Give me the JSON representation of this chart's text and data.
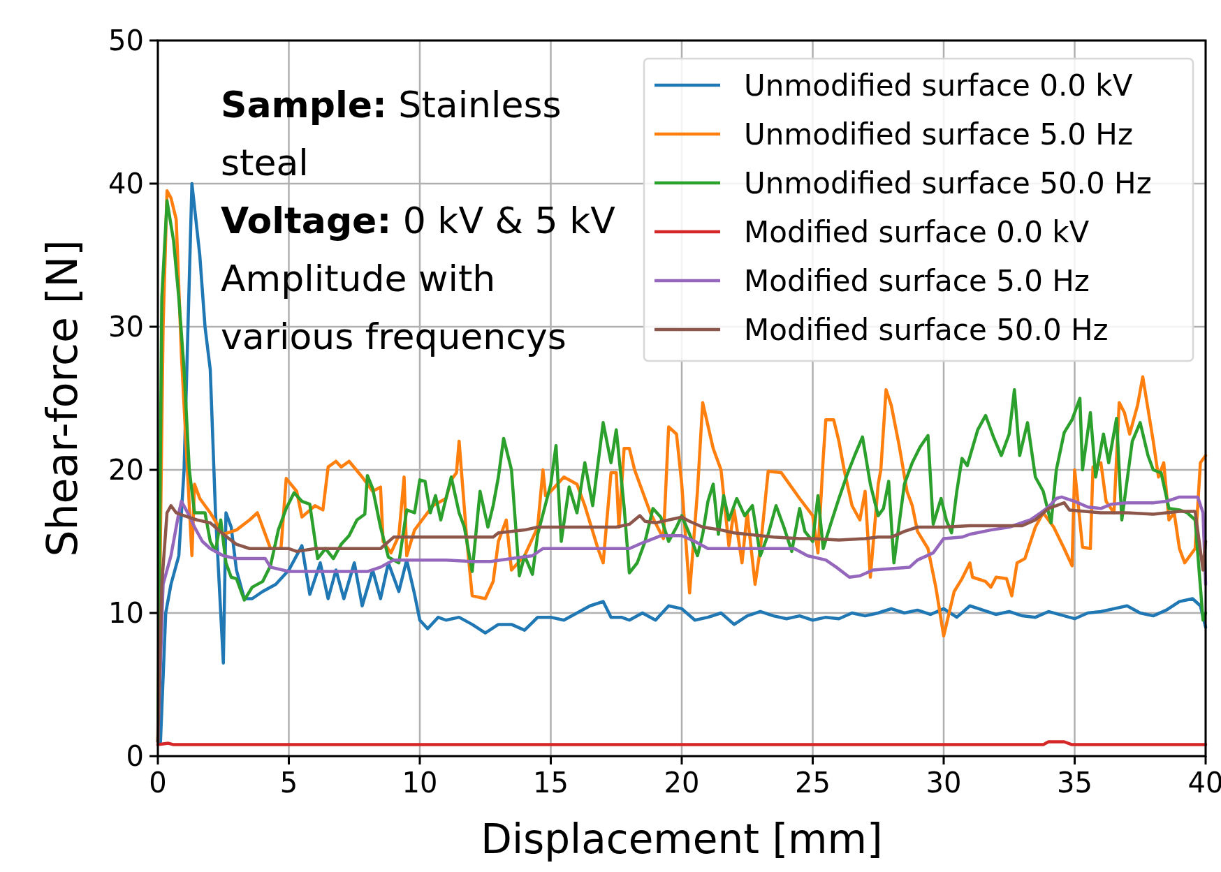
{
  "chart_data": {
    "type": "line",
    "xlabel": "Displacement [mm]",
    "ylabel": "Shear-force [N]",
    "xlim": [
      0,
      40
    ],
    "ylim": [
      0,
      50
    ],
    "xticks": [
      0,
      5,
      10,
      15,
      20,
      25,
      30,
      35,
      40
    ],
    "yticks": [
      0,
      10,
      20,
      30,
      40,
      50
    ],
    "grid": true,
    "legend": "top right",
    "line_style": "solid",
    "marker": "none",
    "annotations": [
      "Sample: Stainless\nsteal",
      "Voltage: 0 kV & 5 kV",
      "Amplitude with\nvarious frequencys"
    ],
    "series": [
      {
        "name": "Unmodified surface 0.0 kV",
        "color": "#1f77b4",
        "x": [
          0,
          0.1,
          0.3,
          0.5,
          0.8,
          1.0,
          1.3,
          1.6,
          1.8,
          2.0,
          2.2,
          2.5,
          2.6,
          2.8,
          3.0,
          3.3,
          3.6,
          4.0,
          4.5,
          5.0,
          5.5,
          5.8,
          6.2,
          6.5,
          6.8,
          7.1,
          7.5,
          7.8,
          8.2,
          8.5,
          8.8,
          9.2,
          9.5,
          9.8,
          10.0,
          10.3,
          10.7,
          11.0,
          11.5,
          12.0,
          12.5,
          13.0,
          13.5,
          14.0,
          14.5,
          15.0,
          15.5,
          16.0,
          16.5,
          17.0,
          17.3,
          17.7,
          18.0,
          18.5,
          19.0,
          19.5,
          20.0,
          20.5,
          21.0,
          21.5,
          22.0,
          22.5,
          23.0,
          23.5,
          24.0,
          24.5,
          25.0,
          25.5,
          26.0,
          26.5,
          27.0,
          27.5,
          28.0,
          28.5,
          29.0,
          29.5,
          30.0,
          30.5,
          31.0,
          31.5,
          32.0,
          32.5,
          33.0,
          33.5,
          34.0,
          35.0,
          35.5,
          36.0,
          36.5,
          37.0,
          37.5,
          38.0,
          38.5,
          39.0,
          39.5,
          39.8,
          40
        ],
        "values": [
          1,
          1,
          10,
          12,
          14,
          20,
          40,
          35,
          30,
          27,
          17,
          6.5,
          17,
          16,
          13,
          11,
          11,
          11.5,
          12,
          13,
          14.7,
          11.3,
          13.5,
          11,
          13,
          11,
          13.5,
          10.5,
          13,
          11,
          13.5,
          11.5,
          13.7,
          11.3,
          9.5,
          8.9,
          9.7,
          9.5,
          9.7,
          9.2,
          8.6,
          9.2,
          9.2,
          8.8,
          9.7,
          9.7,
          9.5,
          10,
          10.5,
          10.8,
          9.7,
          9.7,
          9.5,
          10,
          9.5,
          10.5,
          10.3,
          9.5,
          9.7,
          10,
          9.2,
          9.8,
          10.1,
          9.8,
          9.6,
          9.8,
          9.5,
          9.7,
          9.6,
          10,
          9.8,
          10,
          10.3,
          10,
          10.2,
          9.9,
          10.3,
          9.7,
          10.5,
          10.2,
          9.9,
          10.1,
          9.8,
          9.7,
          10.1,
          9.6,
          10,
          10.1,
          10.3,
          10.5,
          10,
          9.8,
          10.2,
          10.8,
          11,
          10.5,
          9
        ]
      },
      {
        "name": "Unmodified surface 5.0 Hz",
        "color": "#ff7f0e",
        "x": [
          0,
          0.2,
          0.35,
          0.5,
          0.7,
          0.9,
          1.1,
          1.3,
          1.4,
          1.6,
          2.0,
          2.5,
          3.0,
          3.5,
          3.8,
          4.0,
          4.3,
          4.7,
          4.9,
          5.3,
          5.5,
          6.0,
          6.3,
          6.5,
          6.8,
          7.0,
          7.3,
          7.8,
          8.2,
          8.5,
          8.6,
          8.9,
          9.2,
          9.4,
          9.5,
          9.8,
          10.5,
          11.0,
          11.2,
          11.4,
          11.5,
          11.8,
          12.0,
          12.5,
          12.8,
          13.0,
          13.3,
          13.5,
          14.0,
          14.5,
          14.7,
          14.8,
          15.0,
          15.5,
          16.0,
          16.3,
          16.8,
          17.0,
          17.3,
          17.5,
          17.6,
          17.8,
          18.0,
          18.2,
          18.4,
          18.8,
          19.3,
          19.5,
          19.8,
          20.0,
          20.3,
          20.6,
          20.8,
          21.2,
          21.5,
          21.8,
          22.0,
          22.3,
          22.5,
          22.8,
          23.0,
          23.3,
          23.8,
          24.5,
          25.0,
          25.2,
          25.4,
          25.5,
          25.8,
          26.0,
          26.2,
          26.5,
          26.8,
          27.0,
          27.2,
          27.5,
          27.6,
          27.8,
          28.0,
          28.3,
          28.6,
          28.8,
          29.0,
          29.4,
          29.7,
          30.0,
          30.4,
          30.7,
          31.0,
          31.1,
          31.6,
          31.8,
          32.0,
          32.4,
          32.6,
          32.8,
          33.1,
          33.5,
          33.8,
          34.2,
          34.6,
          34.9,
          35.0,
          35.3,
          35.6,
          35.7,
          36.0,
          36.2,
          36.5,
          36.7,
          36.9,
          37.1,
          37.4,
          37.6,
          38.0,
          38.2,
          38.4,
          38.6,
          38.8,
          39.0,
          39.2,
          39.6,
          39.8,
          40.0
        ],
        "values": [
          1,
          30,
          39.5,
          39,
          37.5,
          28,
          21,
          14,
          19,
          18,
          17,
          15.5,
          15.8,
          16.5,
          17,
          16,
          14.5,
          14.5,
          19.4,
          18.5,
          16.7,
          17.5,
          17.2,
          20.2,
          20.6,
          20.2,
          20.6,
          19.5,
          18.5,
          18.8,
          15,
          14.2,
          15.4,
          19.5,
          14,
          15.8,
          17.5,
          18,
          19.3,
          19.8,
          22,
          15,
          11.2,
          11,
          12.2,
          15,
          16.5,
          13,
          14,
          16,
          20,
          18.2,
          18.5,
          19.5,
          19,
          17.5,
          14.5,
          13.5,
          19.8,
          19.8,
          16,
          21.5,
          21.5,
          20,
          19,
          17,
          15.2,
          23,
          22.5,
          19,
          11.4,
          18.5,
          24.7,
          21.5,
          20,
          14.7,
          17.2,
          13.5,
          17,
          12,
          14.5,
          19.9,
          19.8,
          18,
          16.8,
          14.2,
          20.8,
          23.5,
          23.5,
          22,
          20,
          17.5,
          16.5,
          18.5,
          12.5,
          19,
          20,
          25.6,
          24.5,
          21.7,
          18.5,
          17.5,
          15.7,
          14.5,
          11.8,
          8.4,
          11.5,
          12.4,
          13.5,
          12.5,
          12.2,
          11.8,
          12.5,
          12.4,
          11.2,
          13.5,
          13.8,
          16,
          17,
          16,
          14.5,
          13.3,
          20,
          14.6,
          14.5,
          20.2,
          20.5,
          17.8,
          17,
          24.7,
          24,
          22.5,
          24.5,
          26.5,
          22,
          19.5,
          20.5,
          16.5,
          17,
          14.5,
          13.5,
          14.5,
          20.5,
          21
        ]
      },
      {
        "name": "Unmodified surface 50.0 Hz",
        "color": "#2ca02c",
        "x": [
          0,
          0.15,
          0.35,
          0.6,
          0.8,
          1.0,
          1.2,
          1.4,
          1.6,
          1.8,
          2.0,
          2.2,
          2.4,
          2.6,
          2.8,
          3.0,
          3.3,
          3.6,
          4.0,
          4.3,
          4.6,
          4.9,
          5.2,
          5.5,
          5.8,
          6.1,
          6.4,
          6.7,
          7.0,
          7.3,
          7.6,
          7.9,
          8.0,
          8.2,
          8.5,
          8.8,
          9.2,
          9.5,
          9.8,
          10.0,
          10.2,
          10.4,
          10.6,
          10.8,
          11.2,
          11.5,
          11.7,
          12.0,
          12.3,
          12.6,
          12.8,
          13.0,
          13.2,
          13.5,
          13.8,
          14.0,
          14.3,
          14.5,
          15.0,
          15.2,
          15.4,
          15.7,
          16.0,
          16.3,
          16.6,
          17.0,
          17.3,
          17.5,
          17.8,
          18.0,
          18.3,
          18.6,
          18.9,
          19.2,
          19.5,
          19.8,
          20.0,
          20.3,
          20.6,
          20.8,
          21.0,
          21.2,
          21.4,
          21.6,
          21.8,
          22.1,
          22.4,
          22.7,
          23.0,
          23.3,
          23.6,
          23.9,
          24.2,
          24.5,
          24.7,
          25.0,
          25.2,
          25.4,
          25.7,
          26.0,
          26.3,
          26.6,
          26.9,
          27.2,
          27.5,
          27.7,
          27.9,
          28.1,
          28.5,
          28.8,
          29.1,
          29.4,
          29.6,
          29.9,
          30.1,
          30.3,
          30.5,
          30.7,
          30.9,
          31.3,
          31.6,
          31.9,
          32.2,
          32.5,
          32.7,
          32.9,
          33.2,
          33.5,
          33.8,
          34.1,
          34.3,
          34.6,
          34.9,
          35.2,
          35.3,
          35.6,
          35.8,
          36.1,
          36.3,
          36.6,
          36.8,
          37.2,
          37.5,
          37.8,
          38.0,
          38.3,
          38.6,
          39.0,
          39.3,
          39.6,
          39.9,
          40.0
        ],
        "values": [
          1,
          32,
          38.8,
          36,
          32,
          27,
          20,
          17,
          17,
          17,
          15,
          14.3,
          16.5,
          13.5,
          12.5,
          12.4,
          10.9,
          11.8,
          12.2,
          13.3,
          15.8,
          17.3,
          18.4,
          17.8,
          17.6,
          13.8,
          14.5,
          13.8,
          14.8,
          15.4,
          16.5,
          16.9,
          19.6,
          18.7,
          16,
          13.9,
          13.5,
          17.2,
          17,
          19.3,
          19.2,
          17,
          18.2,
          16.5,
          19.5,
          17,
          16,
          12.9,
          18.5,
          16,
          17.5,
          19.5,
          22.2,
          20,
          12.6,
          14,
          12.7,
          15.5,
          19,
          21.7,
          15,
          18.8,
          17,
          20.5,
          17.5,
          23.3,
          20.5,
          22.8,
          17.4,
          12.8,
          13.5,
          15,
          17.3,
          16.7,
          15,
          16,
          16.8,
          15.5,
          14,
          15.5,
          17.8,
          19,
          15.5,
          18.2,
          16.5,
          18,
          16.8,
          17.5,
          14,
          15.5,
          17.5,
          16,
          14.3,
          17.3,
          15.7,
          15,
          18.2,
          14.5,
          16.3,
          18,
          19.6,
          21,
          22.3,
          19,
          16.8,
          17.3,
          19.2,
          13.5,
          19,
          20.5,
          21.6,
          22.4,
          16.2,
          18,
          16.5,
          15.6,
          18.5,
          20.8,
          20.3,
          22.8,
          23.8,
          22.3,
          21,
          22.5,
          25.6,
          21,
          23.3,
          19.5,
          18.5,
          16.3,
          20,
          22.6,
          23.5,
          25,
          20,
          24,
          19.5,
          22.5,
          20.5,
          23.6,
          16.5,
          22,
          23.3,
          21,
          20,
          19.8,
          17.3,
          17.2,
          17,
          16.5,
          9.5,
          10
        ]
      },
      {
        "name": "Modified surface 0.0 kV",
        "color": "#d62728",
        "x": [
          0,
          0.4,
          0.6,
          33.8,
          34.0,
          34.6,
          34.9,
          40
        ],
        "values": [
          0.8,
          0.9,
          0.8,
          0.8,
          1.0,
          1.0,
          0.8,
          0.8
        ]
      },
      {
        "name": "Modified surface 5.0 Hz",
        "color": "#9467bd",
        "x": [
          0,
          0.2,
          0.5,
          0.8,
          0.9,
          1.2,
          1.4,
          1.7,
          2.0,
          2.5,
          3.0,
          3.5,
          4.1,
          4.3,
          5.0,
          6.0,
          7.0,
          8.0,
          8.5,
          9.0,
          10.0,
          11.0,
          12.0,
          12.7,
          13.5,
          14.3,
          14.7,
          15.5,
          17.0,
          18.0,
          18.5,
          19.2,
          20.0,
          20.5,
          21.0,
          22.0,
          23.0,
          24.3,
          24.8,
          25.5,
          25.9,
          26.4,
          26.8,
          27.3,
          28.0,
          28.7,
          29.0,
          29.6,
          30.0,
          30.7,
          31.0,
          31.8,
          32.5,
          33.3,
          33.7,
          34.0,
          34.3,
          34.5,
          35.0,
          35.5,
          36.0,
          36.4,
          37.0,
          38.0,
          38.5,
          39.0,
          39.7,
          39.9,
          40
        ],
        "values": [
          1,
          12,
          14,
          17,
          17.8,
          16.8,
          16,
          15,
          14.5,
          14,
          13.8,
          13.8,
          13.8,
          13.2,
          12.9,
          12.9,
          12.9,
          12.9,
          13.2,
          13.7,
          13.7,
          13.7,
          13.6,
          13.6,
          13.8,
          14,
          14.5,
          14.5,
          14.5,
          14.5,
          14.9,
          15.4,
          15.4,
          15,
          14.5,
          14.5,
          14.5,
          14.5,
          14,
          13.7,
          13.2,
          12.5,
          12.6,
          13,
          13.1,
          13.2,
          13.7,
          14.2,
          15.2,
          15.3,
          15.5,
          15.8,
          16,
          16.5,
          17,
          17.4,
          18,
          18.1,
          17.8,
          17.4,
          17.3,
          17.6,
          17.7,
          17.7,
          17.8,
          18.1,
          18.1,
          17,
          12
        ]
      },
      {
        "name": "Modified surface 50.0 Hz",
        "color": "#8c564b",
        "x": [
          0,
          0.15,
          0.35,
          0.5,
          0.7,
          1.0,
          1.5,
          2.0,
          2.5,
          3.0,
          3.5,
          4.0,
          5.0,
          5.3,
          6.0,
          7.0,
          8.0,
          8.5,
          9.0,
          10.0,
          12.0,
          12.8,
          13.0,
          14.0,
          14.5,
          16.0,
          17.5,
          18.0,
          18.4,
          18.6,
          19.0,
          19.5,
          20.0,
          20.3,
          20.8,
          21.5,
          22.0,
          22.5,
          23.5,
          24.5,
          25.0,
          26.0,
          27.0,
          27.5,
          28.0,
          28.5,
          29.0,
          30.0,
          31.0,
          33.0,
          33.5,
          34.0,
          34.6,
          34.8,
          36.0,
          37.0,
          38.0,
          39.0,
          39.6,
          39.9,
          40
        ],
        "values": [
          1,
          12,
          17,
          17.5,
          17,
          16.8,
          16.5,
          16.3,
          15.5,
          14.8,
          14.5,
          14.5,
          14.5,
          14.3,
          14.5,
          14.5,
          14.5,
          14.5,
          15.3,
          15.3,
          15.3,
          15.3,
          15.6,
          15.8,
          16,
          16,
          16,
          16.2,
          16.8,
          16.4,
          16.3,
          16.5,
          16.7,
          16.4,
          16,
          15.8,
          15.6,
          15.5,
          15.3,
          15.2,
          15.2,
          15.1,
          15.2,
          15.3,
          15.3,
          15.7,
          16,
          16,
          16.1,
          16.1,
          16.5,
          17.3,
          17.7,
          17.2,
          17,
          17,
          16.9,
          17.1,
          17.1,
          13,
          15
        ]
      }
    ]
  }
}
